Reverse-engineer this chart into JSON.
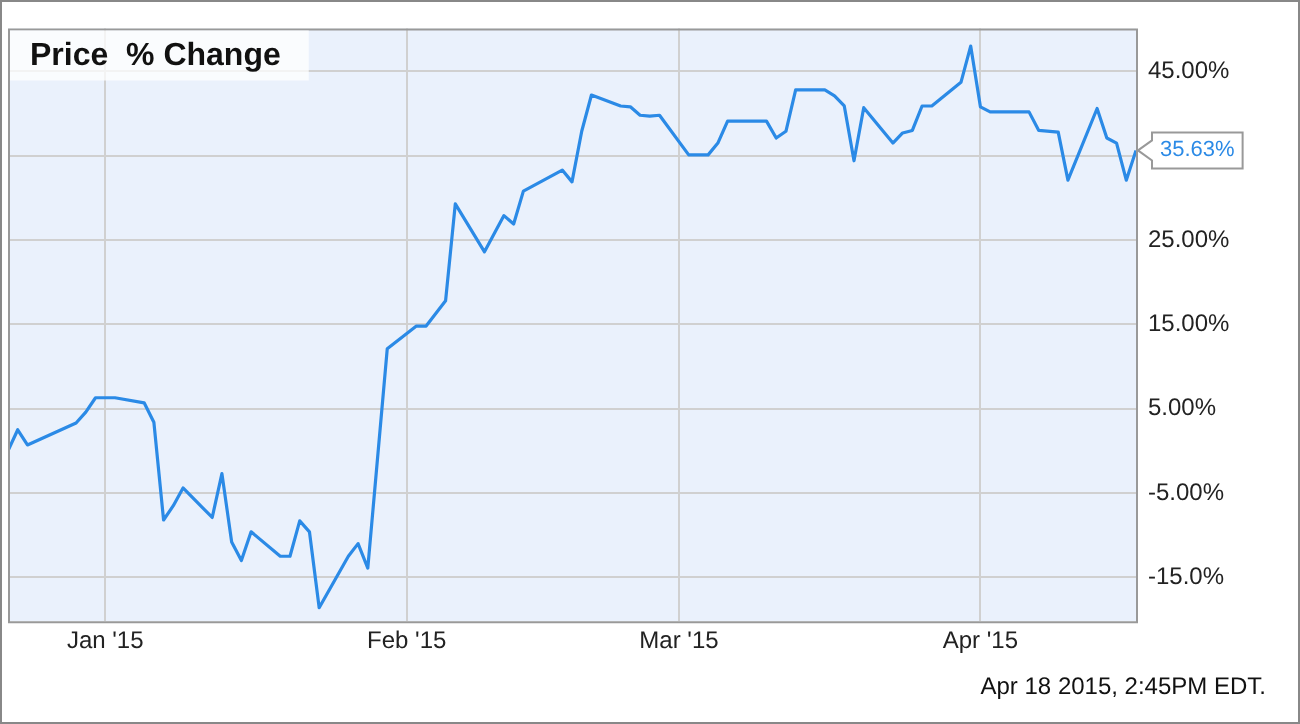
{
  "chart_data": {
    "type": "line",
    "title": "Price  % Change",
    "x": [
      "2014-12-22",
      "2014-12-23",
      "2014-12-24",
      "2014-12-29",
      "2014-12-30",
      "2014-12-31",
      "2015-01-02",
      "2015-01-05",
      "2015-01-06",
      "2015-01-07",
      "2015-01-08",
      "2015-01-09",
      "2015-01-12",
      "2015-01-13",
      "2015-01-14",
      "2015-01-15",
      "2015-01-16",
      "2015-01-19",
      "2015-01-20",
      "2015-01-21",
      "2015-01-22",
      "2015-01-23",
      "2015-01-26",
      "2015-01-27",
      "2015-01-28",
      "2015-01-30",
      "2015-02-02",
      "2015-02-03",
      "2015-02-05",
      "2015-02-06",
      "2015-02-09",
      "2015-02-11",
      "2015-02-12",
      "2015-02-13",
      "2015-02-17",
      "2015-02-18",
      "2015-02-19",
      "2015-02-20",
      "2015-02-23",
      "2015-02-24",
      "2015-02-25",
      "2015-02-26",
      "2015-02-27",
      "2015-03-02",
      "2015-03-04",
      "2015-03-05",
      "2015-03-06",
      "2015-03-10",
      "2015-03-11",
      "2015-03-12",
      "2015-03-13",
      "2015-03-16",
      "2015-03-17",
      "2015-03-18",
      "2015-03-19",
      "2015-03-20",
      "2015-03-23",
      "2015-03-24",
      "2015-03-25",
      "2015-03-26",
      "2015-03-27",
      "2015-03-30",
      "2015-03-31",
      "2015-04-01",
      "2015-04-02",
      "2015-04-06",
      "2015-04-07",
      "2015-04-09",
      "2015-04-10",
      "2015-04-13",
      "2015-04-14",
      "2015-04-15",
      "2015-04-16",
      "2015-04-17"
    ],
    "series": [
      {
        "color": "#2b8ae6",
        "values": [
          0.0,
          2.5,
          0.7,
          3.3,
          4.6,
          6.3,
          6.3,
          5.7,
          3.4,
          -8.2,
          -6.5,
          -4.4,
          -7.9,
          -2.7,
          -10.8,
          -13.0,
          -9.6,
          -12.5,
          -12.5,
          -8.3,
          -9.6,
          -18.6,
          -12.5,
          -11.0,
          -13.9,
          12.1,
          14.8,
          14.8,
          17.8,
          29.3,
          23.6,
          27.9,
          26.9,
          30.8,
          33.3,
          31.9,
          37.9,
          42.2,
          40.9,
          40.8,
          39.8,
          39.7,
          39.8,
          35.1,
          35.1,
          36.5,
          39.1,
          39.1,
          37.1,
          37.9,
          42.8,
          42.8,
          42.1,
          40.9,
          34.4,
          40.7,
          36.5,
          37.7,
          38.0,
          40.9,
          40.9,
          43.7,
          48.0,
          40.8,
          40.2,
          40.2,
          38.0,
          37.8,
          32.1,
          40.6,
          37.1,
          36.5,
          32.1,
          35.63
        ]
      }
    ],
    "xlim": [
      "2014-12-22",
      "2015-04-17"
    ],
    "xticks": [
      {
        "value": "2015-01-01",
        "label": "Jan '15"
      },
      {
        "value": "2015-02-01",
        "label": "Feb '15"
      },
      {
        "value": "2015-03-01",
        "label": "Mar '15"
      },
      {
        "value": "2015-04-01",
        "label": "Apr '15"
      }
    ],
    "ylim": [
      -20.2,
      50.1
    ],
    "yticks": [
      {
        "value": -15,
        "label": "-15.0%"
      },
      {
        "value": -5,
        "label": "-5.00%"
      },
      {
        "value": 5,
        "label": "5.00%"
      },
      {
        "value": 15,
        "label": "15.00%"
      },
      {
        "value": 25,
        "label": "25.00%"
      },
      {
        "value": 35,
        "label": null
      },
      {
        "value": 45,
        "label": "45.00%"
      }
    ],
    "grid": true,
    "legend": false,
    "marker": "none",
    "line_style": "solid",
    "annotations": [
      {
        "text": "35.63%",
        "x": "2015-04-17",
        "y": 35.63
      },
      "Apr 18 2015, 2:45PM EDT."
    ]
  }
}
